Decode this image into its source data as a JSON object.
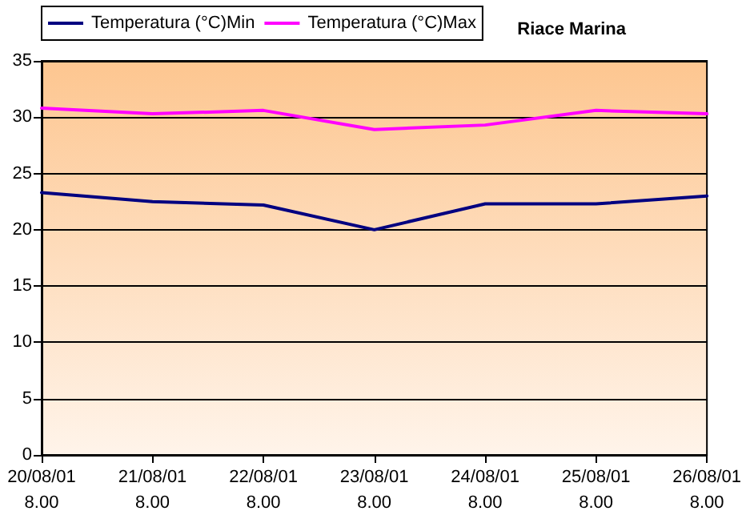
{
  "chart_data": {
    "type": "line",
    "title": "Riace Marina",
    "categories": [
      "20/08/01\n8.00",
      "21/08/01\n8.00",
      "22/08/01\n8.00",
      "23/08/01\n8.00",
      "24/08/01\n8.00",
      "25/08/01\n8.00",
      "26/08/01\n8.00"
    ],
    "series": [
      {
        "name": "Temperatura (°C)Min",
        "color": "#000080",
        "values": [
          23.3,
          22.5,
          22.2,
          20.0,
          22.3,
          22.3,
          23.0
        ]
      },
      {
        "name": "Temperatura (°C)Max",
        "color": "#ff00ff",
        "values": [
          30.8,
          30.3,
          30.6,
          28.9,
          29.3,
          30.6,
          30.3
        ]
      }
    ],
    "ylim": [
      0,
      35
    ],
    "yticks": [
      0,
      5,
      10,
      15,
      20,
      25,
      30,
      35
    ],
    "grid": "y",
    "legend": "top left",
    "marker": "none",
    "line_style": "solid"
  }
}
